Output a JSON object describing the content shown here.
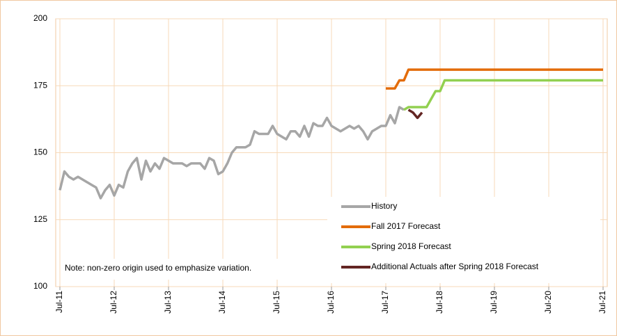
{
  "chart_data": {
    "type": "line",
    "note": "Note: non-zero origin used to emphasize variation.",
    "xlim": [
      "2011-07",
      "2021-07"
    ],
    "xticks": [
      {
        "value": "2011-07",
        "label": "Jul-11"
      },
      {
        "value": "2012-07",
        "label": "Jul-12"
      },
      {
        "value": "2013-07",
        "label": "Jul-13"
      },
      {
        "value": "2014-07",
        "label": "Jul-14"
      },
      {
        "value": "2015-07",
        "label": "Jul-15"
      },
      {
        "value": "2016-07",
        "label": "Jul-16"
      },
      {
        "value": "2017-07",
        "label": "Jul-17"
      },
      {
        "value": "2018-07",
        "label": "Jul-18"
      },
      {
        "value": "2019-07",
        "label": "Jul-19"
      },
      {
        "value": "2020-07",
        "label": "Jul-20"
      },
      {
        "value": "2021-07",
        "label": "Jul-21"
      }
    ],
    "ylim": [
      100,
      200
    ],
    "yticks": [
      100,
      125,
      150,
      175,
      200
    ],
    "grid": true,
    "series": [
      {
        "name": "History",
        "color": "#a6a6a6",
        "x": [
          "2011-07",
          "2011-08",
          "2011-09",
          "2011-10",
          "2011-11",
          "2011-12",
          "2012-01",
          "2012-02",
          "2012-03",
          "2012-04",
          "2012-05",
          "2012-06",
          "2012-07",
          "2012-08",
          "2012-09",
          "2012-10",
          "2012-11",
          "2012-12",
          "2013-01",
          "2013-02",
          "2013-03",
          "2013-04",
          "2013-05",
          "2013-06",
          "2013-07",
          "2013-08",
          "2013-09",
          "2013-10",
          "2013-11",
          "2013-12",
          "2014-01",
          "2014-02",
          "2014-03",
          "2014-04",
          "2014-05",
          "2014-06",
          "2014-07",
          "2014-08",
          "2014-09",
          "2014-10",
          "2014-11",
          "2014-12",
          "2015-01",
          "2015-02",
          "2015-03",
          "2015-04",
          "2015-05",
          "2015-06",
          "2015-07",
          "2015-08",
          "2015-09",
          "2015-10",
          "2015-11",
          "2015-12",
          "2016-01",
          "2016-02",
          "2016-03",
          "2016-04",
          "2016-05",
          "2016-06",
          "2016-07",
          "2016-08",
          "2016-09",
          "2016-10",
          "2016-11",
          "2016-12",
          "2017-01",
          "2017-02",
          "2017-03",
          "2017-04",
          "2017-05",
          "2017-06",
          "2017-07",
          "2017-08",
          "2017-09",
          "2017-10",
          "2017-11"
        ],
        "values": [
          136,
          143,
          141,
          140,
          141,
          140,
          139,
          138,
          137,
          133,
          136,
          138,
          134,
          138,
          137,
          143,
          146,
          148,
          140,
          147,
          143,
          146,
          144,
          148,
          147,
          146,
          146,
          146,
          145,
          146,
          146,
          146,
          144,
          148,
          147,
          142,
          143,
          146,
          150,
          152,
          152,
          152,
          153,
          158,
          157,
          157,
          157,
          160,
          157,
          156,
          155,
          158,
          158,
          156,
          160,
          156,
          161,
          160,
          160,
          163,
          160,
          159,
          158,
          159,
          160,
          159,
          160,
          158,
          155,
          158,
          159,
          160,
          160,
          164,
          161,
          167,
          166
        ]
      },
      {
        "name": "Fall 2017 Forecast",
        "color": "#e36c0a",
        "x": [
          "2017-07",
          "2017-08",
          "2017-09",
          "2017-10",
          "2017-11",
          "2017-12",
          "2018-01",
          "2018-02",
          "2018-03",
          "2018-04",
          "2018-05",
          "2018-06",
          "2018-07",
          "2018-08",
          "2018-09",
          "2018-10",
          "2018-11",
          "2018-12",
          "2019-01",
          "2019-02",
          "2019-03",
          "2019-04",
          "2019-05",
          "2019-06",
          "2019-07",
          "2019-08",
          "2019-09",
          "2019-10",
          "2019-11",
          "2019-12",
          "2020-01",
          "2020-02",
          "2020-03",
          "2020-04",
          "2020-05",
          "2020-06",
          "2020-07",
          "2020-08",
          "2020-09",
          "2020-10",
          "2020-11",
          "2020-12",
          "2021-01",
          "2021-02",
          "2021-03",
          "2021-04",
          "2021-05",
          "2021-06",
          "2021-07"
        ],
        "values": [
          174,
          174,
          174,
          177,
          177,
          181,
          181,
          181,
          181,
          181,
          181,
          181,
          181,
          181,
          181,
          181,
          181,
          181,
          181,
          181,
          181,
          181,
          181,
          181,
          181,
          181,
          181,
          181,
          181,
          181,
          181,
          181,
          181,
          181,
          181,
          181,
          181,
          181,
          181,
          181,
          181,
          181,
          181,
          181,
          181,
          181,
          181,
          181,
          181
        ]
      },
      {
        "name": "Spring 2018 Forecast",
        "color": "#92d050",
        "x": [
          "2017-11",
          "2017-12",
          "2018-01",
          "2018-02",
          "2018-03",
          "2018-04",
          "2018-05",
          "2018-06",
          "2018-07",
          "2018-08",
          "2018-09",
          "2018-10",
          "2018-11",
          "2018-12",
          "2019-01",
          "2019-02",
          "2019-03",
          "2019-04",
          "2019-05",
          "2019-06",
          "2019-07",
          "2019-08",
          "2019-09",
          "2019-10",
          "2019-11",
          "2019-12",
          "2020-01",
          "2020-02",
          "2020-03",
          "2020-04",
          "2020-05",
          "2020-06",
          "2020-07",
          "2020-08",
          "2020-09",
          "2020-10",
          "2020-11",
          "2020-12",
          "2021-01",
          "2021-02",
          "2021-03",
          "2021-04",
          "2021-05",
          "2021-06",
          "2021-07"
        ],
        "values": [
          166,
          167,
          167,
          167,
          167,
          167,
          170,
          173,
          173,
          177,
          177,
          177,
          177,
          177,
          177,
          177,
          177,
          177,
          177,
          177,
          177,
          177,
          177,
          177,
          177,
          177,
          177,
          177,
          177,
          177,
          177,
          177,
          177,
          177,
          177,
          177,
          177,
          177,
          177,
          177,
          177,
          177,
          177,
          177,
          177
        ]
      },
      {
        "name": "Additional Actuals after Spring 2018 Forecast",
        "color": "#632523",
        "x": [
          "2017-12",
          "2018-01",
          "2018-02",
          "2018-03"
        ],
        "values": [
          166,
          165,
          163,
          165
        ]
      }
    ]
  }
}
